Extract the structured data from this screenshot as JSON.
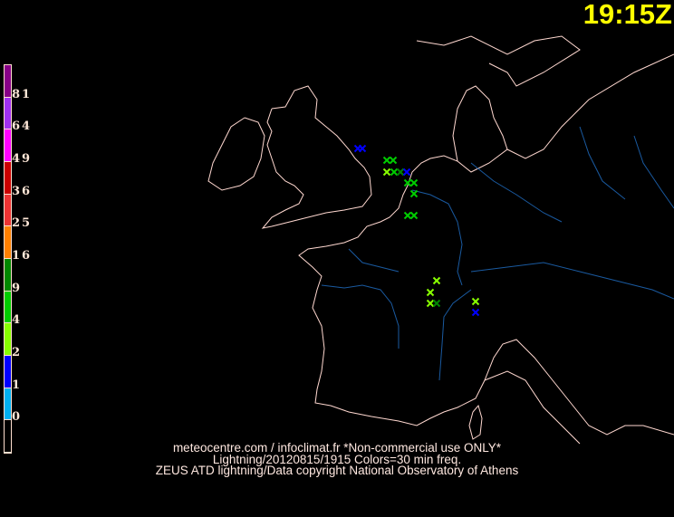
{
  "time_label": "19:15Z",
  "legend": {
    "colors": [
      "#880088",
      "#a030f0",
      "#ff00ff",
      "#cc0000",
      "#ee3333",
      "#ff8000",
      "#008800",
      "#00cc00",
      "#88ff00",
      "#0000ff",
      "#00b0f0",
      "#000000"
    ],
    "labels": [
      "81",
      "64",
      "49",
      "36",
      "25",
      "16",
      "9",
      "4",
      "2",
      "1",
      "0"
    ]
  },
  "credits": [
    "meteocentre.com / infoclimat.fr *Non-commercial use ONLY*",
    "Lightning/20120815/1915 Colors=30 min freq.",
    "ZEUS ATD lightning/Data copyright National Observatory of Athens"
  ],
  "map_colors": {
    "coast": "#ffd8d0",
    "river": "#1a5aa0"
  },
  "strikes": [
    {
      "color": "#0000ff"
    },
    {
      "color": "#0000ff"
    },
    {
      "color": "#00cc00"
    },
    {
      "color": "#00cc00"
    },
    {
      "color": "#88ff00"
    },
    {
      "color": "#00cc00"
    },
    {
      "color": "#008800"
    },
    {
      "color": "#0000ff"
    },
    {
      "color": "#00cc00"
    },
    {
      "color": "#00cc00"
    },
    {
      "color": "#00cc00"
    },
    {
      "color": "#00cc00"
    },
    {
      "color": "#00cc00"
    },
    {
      "color": "#88ff00"
    },
    {
      "color": "#88ff00"
    },
    {
      "color": "#88ff00"
    },
    {
      "color": "#008800"
    },
    {
      "color": "#88ff00"
    },
    {
      "color": "#0000ff"
    }
  ]
}
